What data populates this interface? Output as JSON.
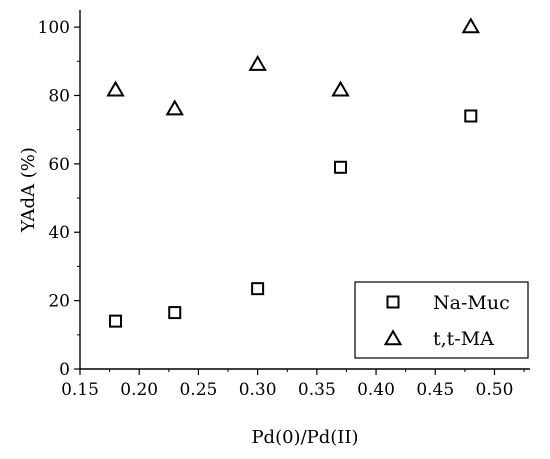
{
  "chart_data": {
    "type": "scatter",
    "title": "",
    "xlabel": "Pd(0)/Pd(II)",
    "ylabel": "YAdA (%)",
    "xlim": [
      0.15,
      0.53
    ],
    "ylim": [
      0,
      105
    ],
    "x_ticks": [
      "0.15",
      "0.20",
      "0.25",
      "0.30",
      "0.35",
      "0.40",
      "0.45",
      "0.50"
    ],
    "y_ticks": [
      "0",
      "20",
      "40",
      "60",
      "80",
      "100"
    ],
    "grid": false,
    "legend_position": "bottom-right",
    "series": [
      {
        "name": "Na-Muc",
        "marker": "square",
        "x": [
          0.18,
          0.23,
          0.3,
          0.37,
          0.48
        ],
        "y": [
          14,
          16.5,
          23.5,
          59,
          74
        ]
      },
      {
        "name": "t,t-MA",
        "marker": "triangle",
        "x": [
          0.18,
          0.23,
          0.3,
          0.37,
          0.48
        ],
        "y": [
          81.5,
          76,
          89,
          81.5,
          100
        ]
      }
    ]
  }
}
